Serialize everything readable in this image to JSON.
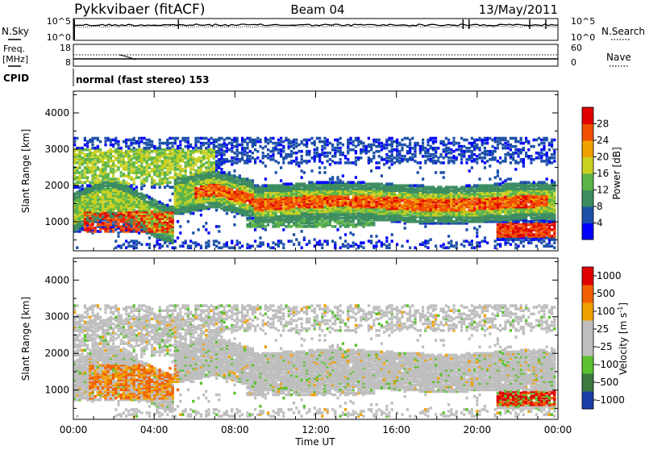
{
  "header": {
    "station": "Pykkvibaer (fitACF)",
    "beam": "Beam 04",
    "date": "13/May/2011"
  },
  "noise_panel": {
    "left_label": "N.Sky",
    "right_label": "N.Search",
    "left_ticks": [
      "10^5",
      "10^0"
    ],
    "right_ticks": [
      "10^5",
      "10^0"
    ]
  },
  "freq_panel": {
    "left_label_1": "Freq.",
    "left_label_2": "[MHz]",
    "right_label": "Nave",
    "left_ticks": [
      "18",
      "8"
    ],
    "right_ticks": [
      "60",
      "0"
    ]
  },
  "cpid": {
    "label": "CPID",
    "value": "normal (fast stereo) 153"
  },
  "colors": {
    "power_scale": [
      "#0000ff",
      "#1c50a8",
      "#3c8c60",
      "#5cb448",
      "#c8d020",
      "#f0a000",
      "#f05000",
      "#e00000"
    ],
    "velocity_scale": [
      "#1c3ca8",
      "#3c7840",
      "#5cc030",
      "#bebebe",
      "#bebebe",
      "#f0a000",
      "#f06000",
      "#e00000"
    ],
    "gray": "#bebebe"
  },
  "chart_data": [
    {
      "type": "heatmap",
      "title": "Power",
      "ylabel": "Slant Range [km]",
      "ylim": [
        200,
        4600
      ],
      "y_ticks": [
        "4000",
        "3000",
        "2000",
        "1000"
      ],
      "colorbar_label": "Power [dB]",
      "colorbar_ticks": [
        "28",
        "24",
        "20",
        "16",
        "12",
        "8",
        "4"
      ],
      "x_ticks": [
        "00:00",
        "04:00",
        "08:00",
        "12:00",
        "16:00",
        "20:00",
        "00:00"
      ],
      "xlim_hours": [
        0,
        24
      ]
    },
    {
      "type": "heatmap",
      "title": "Velocity",
      "ylabel": "Slant Range [km]",
      "ylim": [
        200,
        4600
      ],
      "y_ticks": [
        "4000",
        "3000",
        "2000",
        "1000"
      ],
      "colorbar_label": "Velocity [m s",
      "colorbar_label_sup": "-1",
      "colorbar_ticks": [
        "1000",
        "500",
        "100",
        "25",
        "-25",
        "-100",
        "-500",
        "-1000"
      ],
      "xlabel": "Time UT",
      "x_ticks": [
        "00:00",
        "04:00",
        "08:00",
        "12:00",
        "16:00",
        "20:00",
        "00:00"
      ],
      "xlim_hours": [
        0,
        24
      ]
    }
  ]
}
